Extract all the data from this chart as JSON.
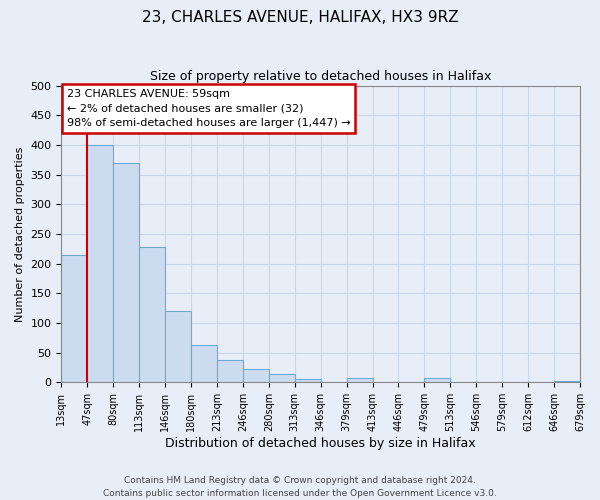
{
  "title": "23, CHARLES AVENUE, HALIFAX, HX3 9RZ",
  "subtitle": "Size of property relative to detached houses in Halifax",
  "xlabel": "Distribution of detached houses by size in Halifax",
  "ylabel": "Number of detached properties",
  "bin_labels": [
    "13sqm",
    "47sqm",
    "80sqm",
    "113sqm",
    "146sqm",
    "180sqm",
    "213sqm",
    "246sqm",
    "280sqm",
    "313sqm",
    "346sqm",
    "379sqm",
    "413sqm",
    "446sqm",
    "479sqm",
    "513sqm",
    "546sqm",
    "579sqm",
    "612sqm",
    "646sqm",
    "679sqm"
  ],
  "bar_values": [
    215,
    400,
    370,
    228,
    120,
    63,
    38,
    22,
    14,
    5,
    0,
    8,
    0,
    0,
    7,
    0,
    0,
    0,
    0,
    3
  ],
  "bar_color": "#ccdcf0",
  "bar_edge_color": "#6aaad4",
  "property_line_x": 1,
  "property_line_color": "#cc0000",
  "ylim": [
    0,
    500
  ],
  "yticks": [
    0,
    50,
    100,
    150,
    200,
    250,
    300,
    350,
    400,
    450,
    500
  ],
  "annotation_title": "23 CHARLES AVENUE: 59sqm",
  "annotation_line1": "← 2% of detached houses are smaller (32)",
  "annotation_line2": "98% of semi-detached houses are larger (1,447) →",
  "annotation_box_color": "#ffffff",
  "annotation_box_edge": "#cc0000",
  "footnote1": "Contains HM Land Registry data © Crown copyright and database right 2024.",
  "footnote2": "Contains public sector information licensed under the Open Government Licence v3.0.",
  "grid_color": "#c8d8e8",
  "background_color": "#e8eef8"
}
